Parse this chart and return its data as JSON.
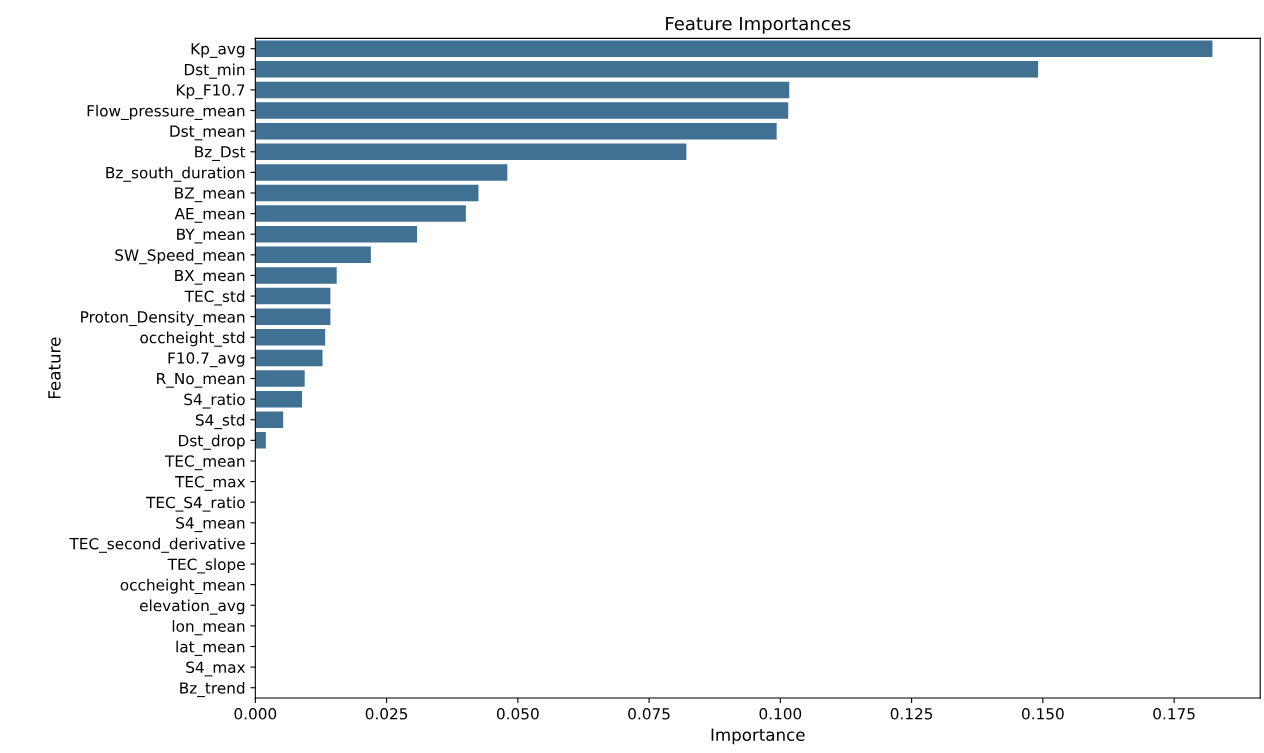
{
  "chart_data": {
    "type": "bar",
    "orientation": "horizontal",
    "title": "Feature Importances",
    "xlabel": "Importance",
    "ylabel": "Feature",
    "categories": [
      "Kp_avg",
      "Dst_min",
      "Kp_F10.7",
      "Flow_pressure_mean",
      "Dst_mean",
      "Bz_Dst",
      "Bz_south_duration",
      "BZ_mean",
      "AE_mean",
      "BY_mean",
      "SW_Speed_mean",
      "BX_mean",
      "TEC_std",
      "Proton_Density_mean",
      "occheight_std",
      "F10.7_avg",
      "R_No_mean",
      "S4_ratio",
      "S4_std",
      "Dst_drop",
      "TEC_mean",
      "TEC_max",
      "TEC_S4_ratio",
      "S4_mean",
      "TEC_second_derivative",
      "TEC_slope",
      "occheight_mean",
      "elevation_avg",
      "lon_mean",
      "lat_mean",
      "S4_max",
      "Bz_trend"
    ],
    "values": [
      0.1823,
      0.1491,
      0.1017,
      0.1015,
      0.0993,
      0.0821,
      0.048,
      0.0425,
      0.0401,
      0.0308,
      0.022,
      0.0155,
      0.0143,
      0.0143,
      0.0133,
      0.0128,
      0.0094,
      0.0089,
      0.0053,
      0.002,
      0,
      0,
      0,
      0,
      0,
      0,
      0,
      0,
      0,
      0,
      0,
      0
    ],
    "color": "#3274a1",
    "xlim": [
      0,
      0.1914
    ],
    "xticks": [
      {
        "value": 0,
        "label": "0.000"
      },
      {
        "value": 0.025,
        "label": "0.025"
      },
      {
        "value": 0.05,
        "label": "0.050"
      },
      {
        "value": 0.075,
        "label": "0.075"
      },
      {
        "value": 0.1,
        "label": "0.100"
      },
      {
        "value": 0.125,
        "label": "0.125"
      },
      {
        "value": 0.15,
        "label": "0.150"
      },
      {
        "value": 0.175,
        "label": "0.175"
      }
    ],
    "grid": false
  }
}
